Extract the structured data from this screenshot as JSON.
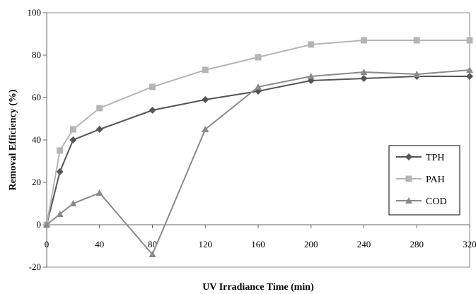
{
  "chart_data": {
    "type": "line",
    "title": "",
    "xlabel": "UV Irradiance Time (min)",
    "ylabel": "Removal Efficiency (%)",
    "xlim": [
      0,
      320
    ],
    "ylim": [
      -20,
      100
    ],
    "xticks": [
      0,
      40,
      80,
      120,
      160,
      200,
      240,
      280,
      320
    ],
    "yticks": [
      -20,
      0,
      20,
      40,
      60,
      80,
      100
    ],
    "grid": false,
    "legend_position": "bottom-right",
    "series": [
      {
        "name": "TPH",
        "marker": "diamond",
        "color": "#555555",
        "x": [
          0,
          10,
          20,
          40,
          80,
          120,
          160,
          200,
          240,
          280,
          320
        ],
        "y": [
          0,
          25,
          40,
          45,
          54,
          59,
          63,
          68,
          69,
          70,
          70
        ]
      },
      {
        "name": "PAH",
        "marker": "square",
        "color": "#b5b5b5",
        "x": [
          0,
          10,
          20,
          40,
          80,
          120,
          160,
          200,
          240,
          280,
          320
        ],
        "y": [
          0,
          35,
          45,
          55,
          65,
          73,
          79,
          85,
          87,
          87,
          87
        ]
      },
      {
        "name": "COD",
        "marker": "triangle",
        "color": "#8a8a8a",
        "x": [
          0,
          10,
          20,
          40,
          80,
          120,
          160,
          200,
          240,
          280,
          320
        ],
        "y": [
          0,
          5,
          10,
          15,
          -14,
          45,
          65,
          70,
          72,
          71,
          73
        ]
      }
    ]
  }
}
